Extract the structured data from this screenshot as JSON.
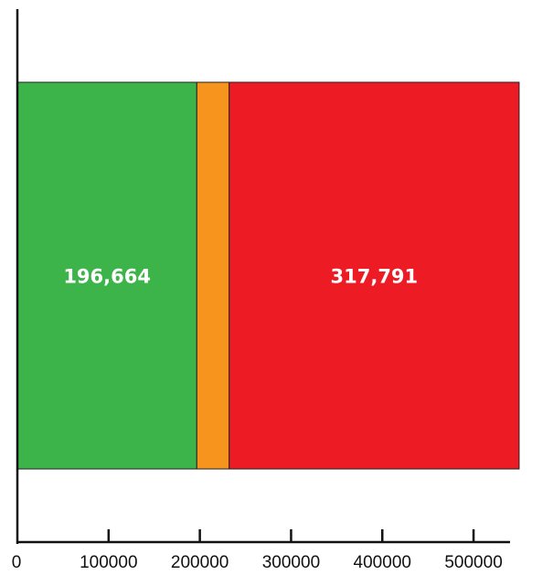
{
  "chart_data": {
    "type": "bar",
    "orientation": "horizontal-stacked",
    "title": "",
    "xlabel": "",
    "ylabel": "",
    "xlim": [
      0,
      540000
    ],
    "x_ticks": [
      0,
      100000,
      200000,
      300000,
      400000,
      500000
    ],
    "x_tick_labels": [
      "0",
      "100000",
      "200000",
      "300000",
      "400000",
      "500000"
    ],
    "grid": false,
    "legend": "none",
    "segments": [
      {
        "value": 196664,
        "label": "196,664",
        "color": "#3cb44a"
      },
      {
        "value": 35500,
        "label": "",
        "color": "#f7941d"
      },
      {
        "value": 317791,
        "label": "317,791",
        "color": "#ed1c24"
      }
    ]
  }
}
